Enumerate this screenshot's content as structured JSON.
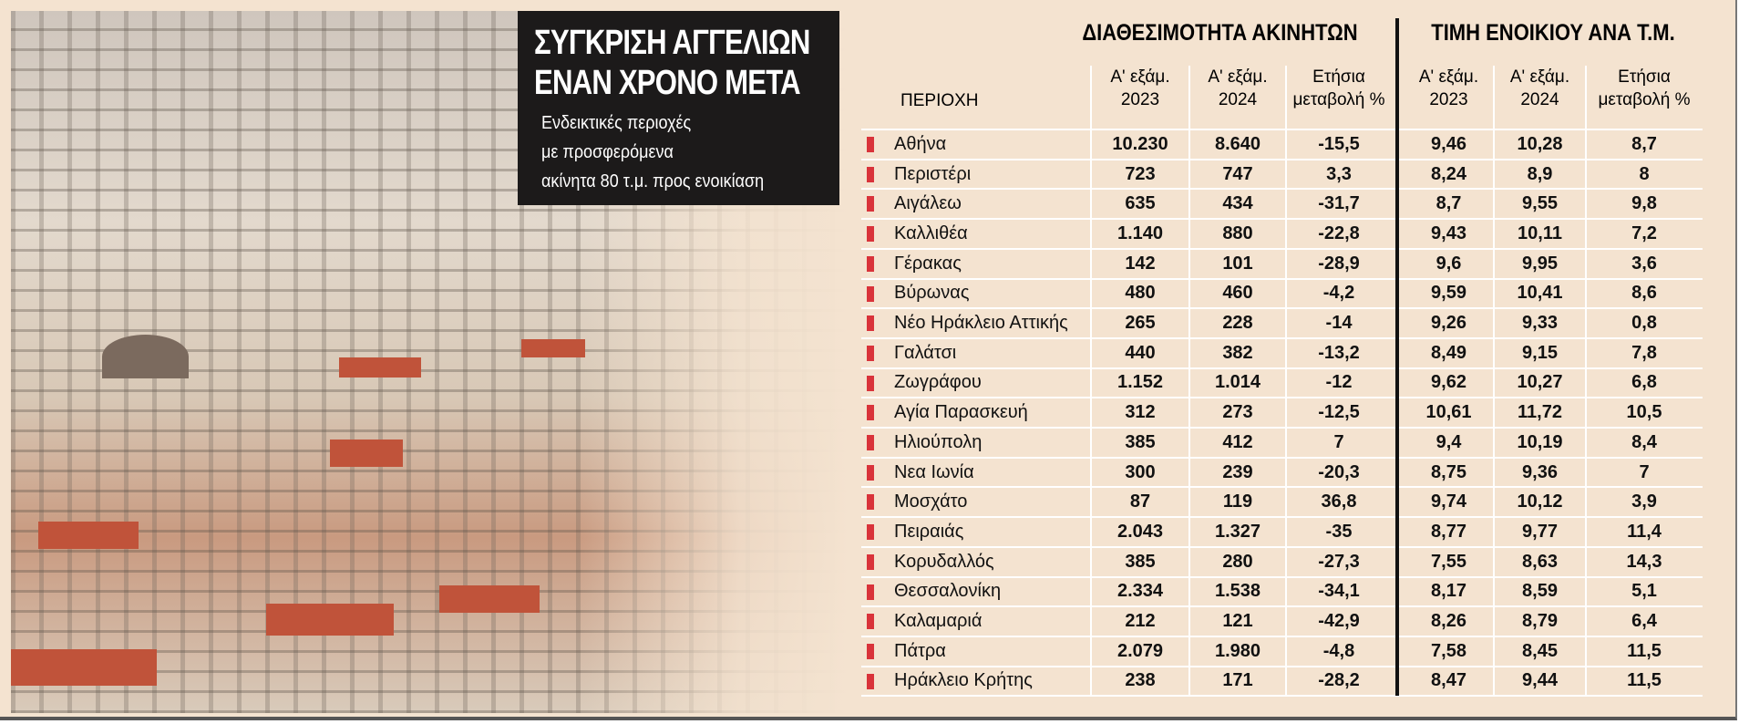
{
  "header": {
    "title": [
      "ΣΥΓΚΡΙΣΗ ΑΓΓΕΛΙΩΝ",
      "ΕΝΑΝ ΧΡΟΝΟ ΜΕΤΑ"
    ],
    "subtitle": [
      "Ενδεικτικές περιοχές",
      "με προσφερόμενα",
      "ακίνητα 80 τ.μ. προς ενοικίαση"
    ]
  },
  "table": {
    "groups": [
      "ΔΙΑΘΕΣΙΜΟΤΗΤΑ ΑΚΙΝΗΤΩΝ",
      "ΤΙΜΗ ΕΝΟΙΚΙΟΥ ΑΝΑ Τ.Μ."
    ],
    "columns": [
      [
        "ΠΕΡΙΟΧΗ"
      ],
      [
        "Α' εξάμ.",
        "2023"
      ],
      [
        "Α' εξάμ.",
        "2024"
      ],
      [
        "Ετήσια",
        "μεταβολή %"
      ],
      [
        "Α' εξάμ.",
        "2023"
      ],
      [
        "Α' εξάμ.",
        "2024"
      ],
      [
        "Ετήσια",
        "μεταβολή %"
      ]
    ],
    "rows": [
      [
        "Αθήνα",
        "10.230",
        "8.640",
        "-15,5",
        "9,46",
        "10,28",
        "8,7"
      ],
      [
        "Περιστέρι",
        "723",
        "747",
        "3,3",
        "8,24",
        "8,9",
        "8"
      ],
      [
        "Αιγάλεω",
        "635",
        "434",
        "-31,7",
        "8,7",
        "9,55",
        "9,8"
      ],
      [
        "Καλλιθέα",
        "1.140",
        "880",
        "-22,8",
        "9,43",
        "10,11",
        "7,2"
      ],
      [
        "Γέρακας",
        "142",
        "101",
        "-28,9",
        "9,6",
        "9,95",
        "3,6"
      ],
      [
        "Βύρωνας",
        "480",
        "460",
        "-4,2",
        "9,59",
        "10,41",
        "8,6"
      ],
      [
        "Νέο Ηράκλειο Αττικής",
        "265",
        "228",
        "-14",
        "9,26",
        "9,33",
        "0,8"
      ],
      [
        "Γαλάτσι",
        "440",
        "382",
        "-13,2",
        "8,49",
        "9,15",
        "7,8"
      ],
      [
        "Ζωγράφου",
        "1.152",
        "1.014",
        "-12",
        "9,62",
        "10,27",
        "6,8"
      ],
      [
        "Αγία Παρασκευή",
        "312",
        "273",
        "-12,5",
        "10,61",
        "11,72",
        "10,5"
      ],
      [
        "Ηλιούπολη",
        "385",
        "412",
        "7",
        "9,4",
        "10,19",
        "8,4"
      ],
      [
        "Νεα Ιωνία",
        "300",
        "239",
        "-20,3",
        "8,75",
        "9,36",
        "7"
      ],
      [
        "Μοσχάτο",
        "87",
        "119",
        "36,8",
        "9,74",
        "10,12",
        "3,9"
      ],
      [
        "Πειραιάς",
        "2.043",
        "1.327",
        "-35",
        "8,77",
        "9,77",
        "11,4"
      ],
      [
        "Κορυδαλλός",
        "385",
        "280",
        "-27,3",
        "7,55",
        "8,63",
        "14,3"
      ],
      [
        "Θεσσαλονίκη",
        "2.334",
        "1.538",
        "-34,1",
        "8,17",
        "8,59",
        "5,1"
      ],
      [
        "Καλαμαριά",
        "212",
        "121",
        "-42,9",
        "8,26",
        "8,79",
        "6,4"
      ],
      [
        "Πάτρα",
        "2.079",
        "1.980",
        "-4,8",
        "7,58",
        "8,45",
        "11,5"
      ],
      [
        "Ηράκλειο Κρήτης",
        "238",
        "171",
        "-28,2",
        "8,47",
        "9,44",
        "11,5"
      ]
    ]
  }
}
